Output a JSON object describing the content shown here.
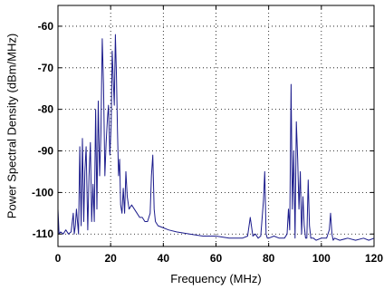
{
  "chart_data": {
    "type": "line",
    "title": "",
    "xlabel": "Frequency (MHz)",
    "ylabel": "Power Spectral Density (dBm/MHz)",
    "xlim": [
      0,
      120
    ],
    "ylim": [
      -113,
      -55
    ],
    "xticks": [
      0,
      20,
      40,
      60,
      80,
      100,
      120
    ],
    "yticks": [
      -110,
      -100,
      -90,
      -80,
      -70,
      -60
    ],
    "xtick_labels": [
      "0",
      "20",
      "40",
      "60",
      "80",
      "100",
      "120"
    ],
    "ytick_labels": [
      "-110",
      "-100",
      "-90",
      "-80",
      "-70",
      "-60"
    ],
    "grid": true,
    "legend": "none",
    "line_color": "#1c1c8c",
    "series": [
      {
        "x": [
          0,
          0.4,
          1,
          2,
          3,
          4,
          5,
          5.8,
          6.2,
          6.6,
          7,
          7.8,
          8.3,
          8.8,
          9.3,
          9.8,
          10.2,
          10.7,
          11.3,
          11.8,
          12.3,
          12.8,
          13.3,
          13.8,
          14.3,
          14.8,
          15.3,
          15.8,
          16.3,
          16.8,
          17.3,
          17.8,
          18.3,
          18.8,
          19.2,
          19.7,
          20.2,
          20.6,
          21.0,
          21.4,
          21.8,
          22.2,
          22.6,
          23.0,
          23.4,
          23.8,
          24.3,
          24.8,
          25.3,
          25.8,
          26.3,
          27,
          28,
          29,
          30,
          31,
          32,
          33,
          34,
          35,
          35.5,
          36,
          36.5,
          37,
          38,
          40,
          42,
          45,
          50,
          55,
          60,
          65,
          70,
          72,
          73,
          74,
          75,
          76,
          77,
          78,
          78.5,
          79,
          79.5,
          80,
          82,
          84,
          86,
          87,
          87.5,
          88,
          88.5,
          89,
          89.5,
          90,
          90.5,
          91,
          91.5,
          92,
          92.5,
          93,
          93.5,
          94,
          94.5,
          95,
          95.5,
          96,
          97,
          98,
          100,
          102,
          103,
          103.5,
          104,
          104.5,
          105,
          107,
          110,
          113,
          116,
          118,
          120
        ],
        "y": [
          -104,
          -110,
          -109.5,
          -110,
          -109,
          -110,
          -109.5,
          -105,
          -110,
          -108,
          -104,
          -110,
          -89,
          -108,
          -87,
          -107,
          -95,
          -89,
          -109,
          -96,
          -88,
          -107,
          -98,
          -107,
          -80,
          -104,
          -78,
          -96,
          -86,
          -63,
          -74,
          -96,
          -88,
          -82,
          -79,
          -91,
          -84,
          -66,
          -73,
          -79,
          -62,
          -72,
          -85,
          -96,
          -92,
          -103,
          -105,
          -99,
          -105,
          -95,
          -101,
          -104,
          -103,
          -104,
          -105,
          -106,
          -106,
          -107,
          -107,
          -105,
          -96,
          -91,
          -104,
          -107,
          -108,
          -108.5,
          -109,
          -109.5,
          -110,
          -110.5,
          -110.5,
          -111,
          -111,
          -110.5,
          -106,
          -110.5,
          -110,
          -111,
          -110.5,
          -102,
          -95,
          -110,
          -111,
          -111,
          -110.5,
          -111,
          -111,
          -110,
          -104,
          -109,
          -74,
          -104,
          -90,
          -111,
          -83,
          -92,
          -104,
          -95,
          -110,
          -101,
          -108,
          -111,
          -111,
          -97,
          -108,
          -111,
          -111,
          -111.5,
          -111,
          -111,
          -109,
          -105,
          -110,
          -111.5,
          -111,
          -111.5,
          -111,
          -111.5,
          -111,
          -111.5,
          -111
        ]
      }
    ]
  }
}
